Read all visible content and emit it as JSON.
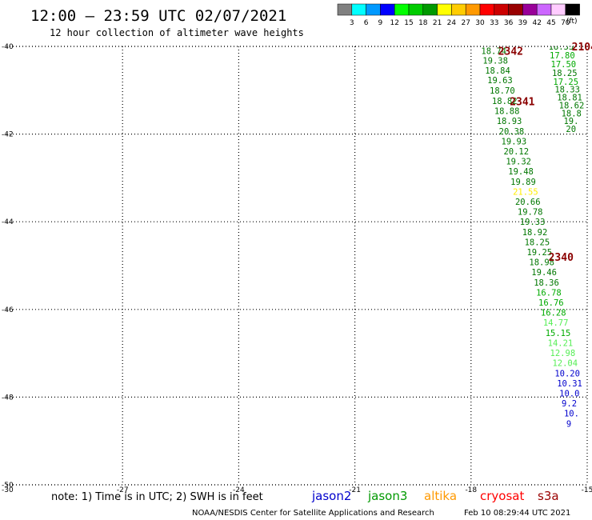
{
  "header": {
    "title": "12:00 – 23:59 UTC 02/07/2021",
    "subtitle": "12 hour collection of altimeter wave heights"
  },
  "colorbar": {
    "unit_label": "(ft)",
    "labels": [
      "3",
      "6",
      "9",
      "12",
      "15",
      "18",
      "21",
      "24",
      "27",
      "30",
      "33",
      "36",
      "39",
      "42",
      "45",
      "70"
    ],
    "colors": [
      "#808080",
      "#00ffff",
      "#0099ff",
      "#0000ff",
      "#00ff00",
      "#00cc00",
      "#009900",
      "#ffff00",
      "#ffcc00",
      "#ff9900",
      "#ff0000",
      "#cc0000",
      "#990000",
      "#990099",
      "#cc66ff",
      "#ffccff",
      "#000000"
    ]
  },
  "footer": {
    "note": "note:  1) Time is in UTC;  2) SWH is in feet",
    "credit": "NOAA/NESDIS Center for Satellite Applications and Research",
    "timestamp": "Feb 10 08:29:44 UTC 2021"
  },
  "missions": [
    {
      "name": "jason2",
      "color": "#0000cc"
    },
    {
      "name": "jason3",
      "color": "#009900"
    },
    {
      "name": "altika",
      "color": "#ff9900"
    },
    {
      "name": "cryosat",
      "color": "#ff0000"
    },
    {
      "name": "s3a",
      "color": "#990000"
    }
  ],
  "chart_data": {
    "type": "scatter",
    "title": "12:00 – 23:59 UTC 02/07/2021",
    "subtitle": "12 hour collection of altimeter wave heights",
    "xlim": [
      -30,
      -15
    ],
    "ylim": [
      -50,
      -40
    ],
    "x_ticks": [
      "-27",
      "-24",
      "-21",
      "-18",
      "-15"
    ],
    "y_ticks": [
      "-40",
      "-42",
      "-44",
      "-46",
      "-48",
      "-50"
    ],
    "grid": true,
    "units": "ft",
    "palette": {
      "cyan": "#00cccc",
      "mid_blue": "#0099ff",
      "blue": "#0000cc",
      "light_green": "#55ee55",
      "green": "#00aa00",
      "dark_green": "#007700",
      "yellow": "#ffee00",
      "orange": "#ff9900",
      "red": "#ff0000",
      "dark_red": "#8b0000"
    },
    "track_labels": [
      {
        "text": "2342",
        "lon": -17.3,
        "lat": -40.1
      },
      {
        "text": "2341",
        "lon": -17.0,
        "lat": -41.25
      },
      {
        "text": "2340",
        "lon": -16.0,
        "lat": -44.8
      },
      {
        "text": "2104",
        "lon": -15.4,
        "lat": -40.0
      }
    ],
    "series": [
      {
        "name": "2342",
        "points": [
          {
            "lon": -17.74,
            "lat": -40.1,
            "v": "18.74",
            "c": "dark_green"
          },
          {
            "lon": -17.7,
            "lat": -40.32,
            "v": "19.38",
            "c": "dark_green"
          },
          {
            "lon": -17.64,
            "lat": -40.55,
            "v": "18.84",
            "c": "dark_green"
          },
          {
            "lon": -17.58,
            "lat": -40.77,
            "v": "19.63",
            "c": "dark_green"
          },
          {
            "lon": -17.52,
            "lat": -41.0,
            "v": "18.70",
            "c": "dark_green"
          },
          {
            "lon": -17.46,
            "lat": -41.24,
            "v": "18.82",
            "c": "dark_green"
          },
          {
            "lon": -17.4,
            "lat": -41.47,
            "v": "18.88",
            "c": "dark_green"
          },
          {
            "lon": -17.34,
            "lat": -41.7,
            "v": "18.93",
            "c": "dark_green"
          },
          {
            "lon": -17.28,
            "lat": -41.93,
            "v": "20.38",
            "c": "dark_green"
          },
          {
            "lon": -17.22,
            "lat": -42.16,
            "v": "19.93",
            "c": "dark_green"
          },
          {
            "lon": -17.16,
            "lat": -42.39,
            "v": "20.12",
            "c": "dark_green"
          },
          {
            "lon": -17.1,
            "lat": -42.62,
            "v": "19.32",
            "c": "dark_green"
          },
          {
            "lon": -17.04,
            "lat": -42.85,
            "v": "19.48",
            "c": "dark_green"
          },
          {
            "lon": -16.98,
            "lat": -43.08,
            "v": "19.89",
            "c": "dark_green"
          },
          {
            "lon": -16.92,
            "lat": -43.31,
            "v": "21.55",
            "c": "yellow"
          },
          {
            "lon": -16.86,
            "lat": -43.54,
            "v": "20.66",
            "c": "dark_green"
          },
          {
            "lon": -16.8,
            "lat": -43.77,
            "v": "19.78",
            "c": "dark_green"
          },
          {
            "lon": -16.74,
            "lat": -44.0,
            "v": "19.33",
            "c": "dark_green"
          },
          {
            "lon": -16.68,
            "lat": -44.23,
            "v": "18.92",
            "c": "dark_green"
          },
          {
            "lon": -16.62,
            "lat": -44.46,
            "v": "18.25",
            "c": "dark_green"
          },
          {
            "lon": -16.56,
            "lat": -44.69,
            "v": "19.25",
            "c": "dark_green"
          },
          {
            "lon": -16.5,
            "lat": -44.92,
            "v": "18.98",
            "c": "dark_green"
          },
          {
            "lon": -16.44,
            "lat": -45.15,
            "v": "19.46",
            "c": "dark_green"
          },
          {
            "lon": -16.38,
            "lat": -45.38,
            "v": "18.36",
            "c": "dark_green"
          },
          {
            "lon": -16.32,
            "lat": -45.61,
            "v": "16.78",
            "c": "green"
          },
          {
            "lon": -16.26,
            "lat": -45.84,
            "v": "16.76",
            "c": "green"
          },
          {
            "lon": -16.2,
            "lat": -46.07,
            "v": "16.28",
            "c": "green"
          },
          {
            "lon": -16.14,
            "lat": -46.3,
            "v": "14.77",
            "c": "light_green"
          },
          {
            "lon": -16.08,
            "lat": -46.53,
            "v": "15.15",
            "c": "green"
          },
          {
            "lon": -16.02,
            "lat": -46.76,
            "v": "14.21",
            "c": "light_green"
          },
          {
            "lon": -15.96,
            "lat": -46.99,
            "v": "12.98",
            "c": "light_green"
          },
          {
            "lon": -15.9,
            "lat": -47.22,
            "v": "12.04",
            "c": "light_green"
          },
          {
            "lon": -15.84,
            "lat": -47.45,
            "v": "10.20",
            "c": "blue"
          },
          {
            "lon": -15.78,
            "lat": -47.68,
            "v": "10.31",
            "c": "blue"
          },
          {
            "lon": -15.72,
            "lat": -47.91,
            "v": "10.0",
            "c": "blue"
          },
          {
            "lon": -15.66,
            "lat": -48.14,
            "v": "9.2",
            "c": "blue"
          },
          {
            "lon": -15.6,
            "lat": -48.37,
            "v": "10.",
            "c": "blue"
          },
          {
            "lon": -15.54,
            "lat": -48.6,
            "v": "9",
            "c": "blue"
          }
        ]
      },
      {
        "name": "2104",
        "points": [
          {
            "lon": -16.0,
            "lat": -40.0,
            "v": "18.33",
            "c": "dark_green"
          },
          {
            "lon": -15.97,
            "lat": -40.2,
            "v": "17.80",
            "c": "green"
          },
          {
            "lon": -15.94,
            "lat": -40.4,
            "v": "17.50",
            "c": "green"
          },
          {
            "lon": -15.91,
            "lat": -40.6,
            "v": "18.25",
            "c": "dark_green"
          },
          {
            "lon": -15.88,
            "lat": -40.8,
            "v": "17.25",
            "c": "green"
          },
          {
            "lon": -15.84,
            "lat": -40.98,
            "v": "18.33",
            "c": "dark_green"
          },
          {
            "lon": -15.78,
            "lat": -41.16,
            "v": "18.81",
            "c": "dark_green"
          },
          {
            "lon": -15.73,
            "lat": -41.34,
            "v": "18.62",
            "c": "dark_green"
          },
          {
            "lon": -15.67,
            "lat": -41.52,
            "v": "18.8",
            "c": "dark_green"
          },
          {
            "lon": -15.61,
            "lat": -41.7,
            "v": "19.",
            "c": "dark_green"
          },
          {
            "lon": -15.55,
            "lat": -41.88,
            "v": "20",
            "c": "dark_green"
          }
        ]
      }
    ]
  }
}
